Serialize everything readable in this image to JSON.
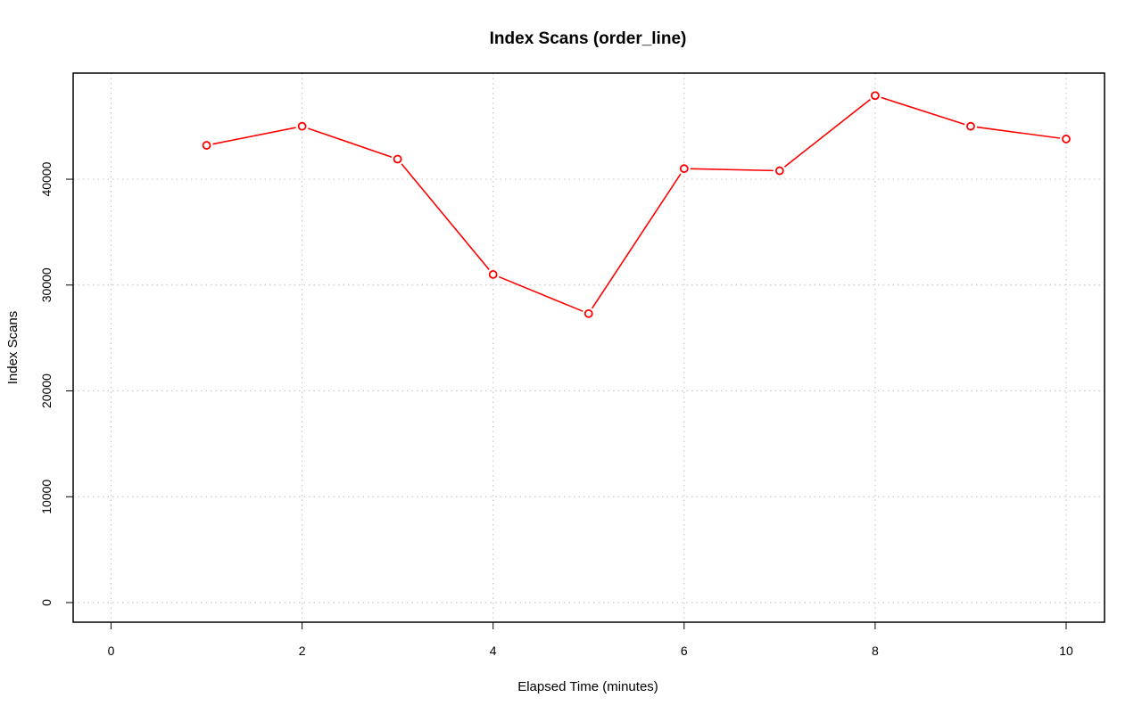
{
  "chart_data": {
    "type": "line",
    "title": "Index Scans (order_line)",
    "xlabel": "Elapsed Time (minutes)",
    "ylabel": "Index Scans",
    "xlim": [
      0,
      10
    ],
    "ylim": [
      0,
      48000
    ],
    "xticks": [
      "0",
      "2",
      "4",
      "6",
      "8",
      "10"
    ],
    "yticks": [
      "0",
      "10000",
      "20000",
      "30000",
      "40000"
    ],
    "grid": true,
    "series": [
      {
        "color": "#ff0000",
        "marker": "open-circle",
        "x": [
          1,
          2,
          3,
          4,
          5,
          6,
          7,
          8,
          9,
          10
        ],
        "y": [
          43200,
          45000,
          41900,
          31000,
          27300,
          41000,
          40800,
          47900,
          45000,
          43800
        ]
      }
    ]
  }
}
